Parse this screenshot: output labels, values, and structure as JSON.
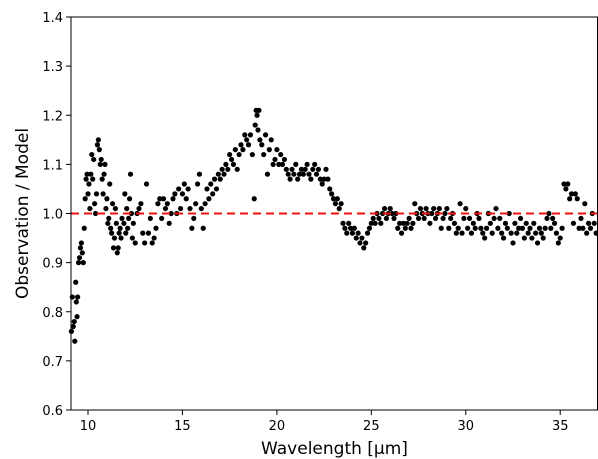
{
  "chart_data": {
    "type": "scatter",
    "title": "",
    "xlabel": "Wavelength [μm]",
    "ylabel": "Observation / Model",
    "xlim": [
      9.1,
      37.0
    ],
    "ylim": [
      0.6,
      1.4
    ],
    "xticks": [
      10,
      15,
      20,
      25,
      30,
      35
    ],
    "xtick_labels": [
      "10",
      "15",
      "20",
      "25",
      "30",
      "35"
    ],
    "yticks": [
      0.6,
      0.7,
      0.8,
      0.9,
      1.0,
      1.1,
      1.2,
      1.3,
      1.4
    ],
    "ytick_labels": [
      "0.6",
      "0.7",
      "0.8",
      "0.9",
      "1.0",
      "1.1",
      "1.2",
      "1.3",
      "1.4"
    ],
    "grid": false,
    "reference_line": {
      "y": 1.0,
      "style": "dashed",
      "color": "#ee1111"
    },
    "marker_color": "#000000",
    "series": [
      {
        "points": [
          [
            9.12,
            0.76
          ],
          [
            9.17,
            0.83
          ],
          [
            9.22,
            0.77
          ],
          [
            9.27,
            0.78
          ],
          [
            9.3,
            0.74
          ],
          [
            9.35,
            0.86
          ],
          [
            9.38,
            0.82
          ],
          [
            9.42,
            0.79
          ],
          [
            9.45,
            0.83
          ],
          [
            9.5,
            0.9
          ],
          [
            9.55,
            0.91
          ],
          [
            9.6,
            0.93
          ],
          [
            9.65,
            0.94
          ],
          [
            9.7,
            0.92
          ],
          [
            9.75,
            0.9
          ],
          [
            9.8,
            0.97
          ],
          [
            9.85,
            1.03
          ],
          [
            9.9,
            1.07
          ],
          [
            9.95,
            1.08
          ],
          [
            10.0,
            1.04
          ],
          [
            10.05,
            1.06
          ],
          [
            10.1,
            1.01
          ],
          [
            10.15,
            1.08
          ],
          [
            10.2,
            1.12
          ],
          [
            10.25,
            1.07
          ],
          [
            10.3,
            1.11
          ],
          [
            10.35,
            1.02
          ],
          [
            10.4,
            1.0
          ],
          [
            10.45,
            1.04
          ],
          [
            10.5,
            1.14
          ],
          [
            10.55,
            1.15
          ],
          [
            10.6,
            1.13
          ],
          [
            10.65,
            1.1
          ],
          [
            10.7,
            1.11
          ],
          [
            10.75,
            1.07
          ],
          [
            10.8,
            1.04
          ],
          [
            10.85,
            1.08
          ],
          [
            10.9,
            1.1
          ],
          [
            10.95,
            1.01
          ],
          [
            11.0,
            1.03
          ],
          [
            11.05,
            0.98
          ],
          [
            11.1,
            0.99
          ],
          [
            11.15,
            1.06
          ],
          [
            11.2,
            0.97
          ],
          [
            11.25,
            0.96
          ],
          [
            11.3,
            1.02
          ],
          [
            11.35,
            0.93
          ],
          [
            11.4,
            0.95
          ],
          [
            11.45,
            1.01
          ],
          [
            11.5,
            0.98
          ],
          [
            11.55,
            0.92
          ],
          [
            11.6,
            0.93
          ],
          [
            11.65,
            0.96
          ],
          [
            11.7,
            0.97
          ],
          [
            11.75,
            0.95
          ],
          [
            11.8,
            0.99
          ],
          [
            11.9,
            0.98
          ],
          [
            11.95,
            1.04
          ],
          [
            12.0,
            0.96
          ],
          [
            12.05,
            1.01
          ],
          [
            12.1,
            0.97
          ],
          [
            12.15,
            0.99
          ],
          [
            12.2,
            1.03
          ],
          [
            12.25,
            1.08
          ],
          [
            12.3,
            1.0
          ],
          [
            12.35,
            0.95
          ],
          [
            12.4,
            0.98
          ],
          [
            12.5,
            0.94
          ],
          [
            12.6,
            1.0
          ],
          [
            12.7,
            1.01
          ],
          [
            12.8,
            1.02
          ],
          [
            12.9,
            0.96
          ],
          [
            13.0,
            0.94
          ],
          [
            13.1,
            1.06
          ],
          [
            13.2,
            0.96
          ],
          [
            13.3,
            0.99
          ],
          [
            13.4,
            0.94
          ],
          [
            13.5,
            0.95
          ],
          [
            13.6,
            0.97
          ],
          [
            13.7,
            1.02
          ],
          [
            13.8,
            1.03
          ],
          [
            13.9,
            0.99
          ],
          [
            14.0,
            1.03
          ],
          [
            14.1,
            1.01
          ],
          [
            14.2,
            1.02
          ],
          [
            14.3,
            0.98
          ],
          [
            14.4,
            1.0
          ],
          [
            14.5,
            1.03
          ],
          [
            14.6,
            1.04
          ],
          [
            14.7,
            1.0
          ],
          [
            14.8,
            1.05
          ],
          [
            14.9,
            1.01
          ],
          [
            15.0,
            1.04
          ],
          [
            15.1,
            1.06
          ],
          [
            15.2,
            1.03
          ],
          [
            15.3,
            1.05
          ],
          [
            15.4,
            1.01
          ],
          [
            15.5,
            0.97
          ],
          [
            15.6,
            0.99
          ],
          [
            15.7,
            1.02
          ],
          [
            15.8,
            1.06
          ],
          [
            15.9,
            1.08
          ],
          [
            16.0,
            1.01
          ],
          [
            16.1,
            0.97
          ],
          [
            16.2,
            1.02
          ],
          [
            16.3,
            1.05
          ],
          [
            16.4,
            1.03
          ],
          [
            16.5,
            1.06
          ],
          [
            16.6,
            1.04
          ],
          [
            16.7,
            1.07
          ],
          [
            16.8,
            1.05
          ],
          [
            16.9,
            1.08
          ],
          [
            17.0,
            1.07
          ],
          [
            17.1,
            1.09
          ],
          [
            17.2,
            1.08
          ],
          [
            17.3,
            1.1
          ],
          [
            17.4,
            1.09
          ],
          [
            17.5,
            1.12
          ],
          [
            17.6,
            1.11
          ],
          [
            17.7,
            1.1
          ],
          [
            17.8,
            1.13
          ],
          [
            17.9,
            1.09
          ],
          [
            18.0,
            1.12
          ],
          [
            18.1,
            1.14
          ],
          [
            18.2,
            1.13
          ],
          [
            18.3,
            1.16
          ],
          [
            18.4,
            1.15
          ],
          [
            18.5,
            1.14
          ],
          [
            18.6,
            1.16
          ],
          [
            18.7,
            1.12
          ],
          [
            18.8,
            1.03
          ],
          [
            18.85,
            1.18
          ],
          [
            18.9,
            1.21
          ],
          [
            18.95,
            1.2
          ],
          [
            19.0,
            1.17
          ],
          [
            19.05,
            1.21
          ],
          [
            19.1,
            1.15
          ],
          [
            19.2,
            1.14
          ],
          [
            19.3,
            1.12
          ],
          [
            19.4,
            1.16
          ],
          [
            19.5,
            1.08
          ],
          [
            19.6,
            1.13
          ],
          [
            19.7,
            1.15
          ],
          [
            19.8,
            1.1
          ],
          [
            19.9,
            1.11
          ],
          [
            20.0,
            1.13
          ],
          [
            20.1,
            1.1
          ],
          [
            20.2,
            1.12
          ],
          [
            20.3,
            1.1
          ],
          [
            20.4,
            1.11
          ],
          [
            20.5,
            1.09
          ],
          [
            20.6,
            1.08
          ],
          [
            20.7,
            1.07
          ],
          [
            20.8,
            1.09
          ],
          [
            20.9,
            1.08
          ],
          [
            21.0,
            1.1
          ],
          [
            21.1,
            1.07
          ],
          [
            21.2,
            1.08
          ],
          [
            21.3,
            1.09
          ],
          [
            21.4,
            1.08
          ],
          [
            21.5,
            1.09
          ],
          [
            21.6,
            1.1
          ],
          [
            21.7,
            1.08
          ],
          [
            21.8,
            1.07
          ],
          [
            21.9,
            1.09
          ],
          [
            22.0,
            1.1
          ],
          [
            22.1,
            1.08
          ],
          [
            22.2,
            1.09
          ],
          [
            22.3,
            1.07
          ],
          [
            22.4,
            1.06
          ],
          [
            22.5,
            1.07
          ],
          [
            22.6,
            1.09
          ],
          [
            22.7,
            1.07
          ],
          [
            22.8,
            1.05
          ],
          [
            22.9,
            1.04
          ],
          [
            23.0,
            1.03
          ],
          [
            23.1,
            1.02
          ],
          [
            23.2,
            1.03
          ],
          [
            23.3,
            1.01
          ],
          [
            23.4,
            1.02
          ],
          [
            23.5,
            0.98
          ],
          [
            23.6,
            0.97
          ],
          [
            23.7,
            0.96
          ],
          [
            23.8,
            0.98
          ],
          [
            23.9,
            0.97
          ],
          [
            24.0,
            0.96
          ],
          [
            24.1,
            0.97
          ],
          [
            24.2,
            0.95
          ],
          [
            24.3,
            0.96
          ],
          [
            24.4,
            0.94
          ],
          [
            24.5,
            0.95
          ],
          [
            24.6,
            0.93
          ],
          [
            24.7,
            0.94
          ],
          [
            24.8,
            0.96
          ],
          [
            24.9,
            0.97
          ],
          [
            25.0,
            0.98
          ],
          [
            25.1,
            0.99
          ],
          [
            25.2,
            0.98
          ],
          [
            25.3,
            1.0
          ],
          [
            25.4,
            0.99
          ],
          [
            25.5,
            0.98
          ],
          [
            25.6,
            1.0
          ],
          [
            25.7,
            1.01
          ],
          [
            25.8,
            0.99
          ],
          [
            25.9,
            1.0
          ],
          [
            26.0,
            1.01
          ],
          [
            26.1,
            1.0
          ],
          [
            26.2,
            0.99
          ],
          [
            26.3,
            1.0
          ],
          [
            26.4,
            0.97
          ],
          [
            26.5,
            0.98
          ],
          [
            26.6,
            0.96
          ],
          [
            26.7,
            0.98
          ],
          [
            26.8,
            0.97
          ],
          [
            26.9,
            0.98
          ],
          [
            27.0,
            0.99
          ],
          [
            27.1,
            0.97
          ],
          [
            27.2,
            0.98
          ],
          [
            27.3,
            1.02
          ],
          [
            27.4,
            1.0
          ],
          [
            27.5,
            0.99
          ],
          [
            27.6,
            1.01
          ],
          [
            27.7,
            1.0
          ],
          [
            27.8,
            0.99
          ],
          [
            27.9,
            1.01
          ],
          [
            28.0,
            1.0
          ],
          [
            28.1,
            0.98
          ],
          [
            28.2,
            1.0
          ],
          [
            28.3,
            1.01
          ],
          [
            28.4,
            0.99
          ],
          [
            28.5,
            1.0
          ],
          [
            28.6,
            1.01
          ],
          [
            28.7,
            0.97
          ],
          [
            28.8,
            0.99
          ],
          [
            28.9,
            1.0
          ],
          [
            29.0,
            1.01
          ],
          [
            29.1,
            0.97
          ],
          [
            29.2,
            0.99
          ],
          [
            29.3,
            1.0
          ],
          [
            29.4,
            0.98
          ],
          [
            29.5,
            0.96
          ],
          [
            29.6,
            0.97
          ],
          [
            29.7,
            1.02
          ],
          [
            29.8,
            0.96
          ],
          [
            29.9,
            0.99
          ],
          [
            30.0,
            1.01
          ],
          [
            30.1,
            0.97
          ],
          [
            30.2,
            0.99
          ],
          [
            30.3,
            0.96
          ],
          [
            30.4,
            0.98
          ],
          [
            30.5,
            0.97
          ],
          [
            30.6,
            1.0
          ],
          [
            30.7,
            0.99
          ],
          [
            30.8,
            0.97
          ],
          [
            30.9,
            0.96
          ],
          [
            31.0,
            0.95
          ],
          [
            31.1,
            0.97
          ],
          [
            31.2,
            1.0
          ],
          [
            31.3,
            0.98
          ],
          [
            31.4,
            0.96
          ],
          [
            31.5,
            0.99
          ],
          [
            31.6,
            1.01
          ],
          [
            31.7,
            0.97
          ],
          [
            31.8,
            0.99
          ],
          [
            31.9,
            0.96
          ],
          [
            32.0,
            0.95
          ],
          [
            32.1,
            0.98
          ],
          [
            32.2,
            0.97
          ],
          [
            32.3,
            1.0
          ],
          [
            32.4,
            0.96
          ],
          [
            32.5,
            0.94
          ],
          [
            32.6,
            0.98
          ],
          [
            32.7,
            0.96
          ],
          [
            32.8,
            0.97
          ],
          [
            32.9,
            0.99
          ],
          [
            33.0,
            0.97
          ],
          [
            33.1,
            0.95
          ],
          [
            33.2,
            0.98
          ],
          [
            33.3,
            0.96
          ],
          [
            33.4,
            0.97
          ],
          [
            33.5,
            0.95
          ],
          [
            33.6,
            0.98
          ],
          [
            33.7,
            0.96
          ],
          [
            33.8,
            0.94
          ],
          [
            33.9,
            0.97
          ],
          [
            34.0,
            0.96
          ],
          [
            34.1,
            0.95
          ],
          [
            34.2,
            0.97
          ],
          [
            34.3,
            0.99
          ],
          [
            34.4,
            1.0
          ],
          [
            34.5,
            0.97
          ],
          [
            34.6,
            0.99
          ],
          [
            34.7,
            0.98
          ],
          [
            34.8,
            0.96
          ],
          [
            34.9,
            0.94
          ],
          [
            35.0,
            0.95
          ],
          [
            35.1,
            0.97
          ],
          [
            35.2,
            1.06
          ],
          [
            35.3,
            1.05
          ],
          [
            35.4,
            1.06
          ],
          [
            35.5,
            1.03
          ],
          [
            35.6,
            1.04
          ],
          [
            35.7,
            0.98
          ],
          [
            35.8,
            1.04
          ],
          [
            35.9,
            1.03
          ],
          [
            36.0,
            0.97
          ],
          [
            36.1,
            0.99
          ],
          [
            36.2,
            0.97
          ],
          [
            36.3,
            1.02
          ],
          [
            36.4,
            0.96
          ],
          [
            36.5,
            0.98
          ],
          [
            36.6,
            0.97
          ],
          [
            36.7,
            1.0
          ],
          [
            36.8,
            0.98
          ],
          [
            36.9,
            0.96
          ]
        ]
      }
    ]
  }
}
